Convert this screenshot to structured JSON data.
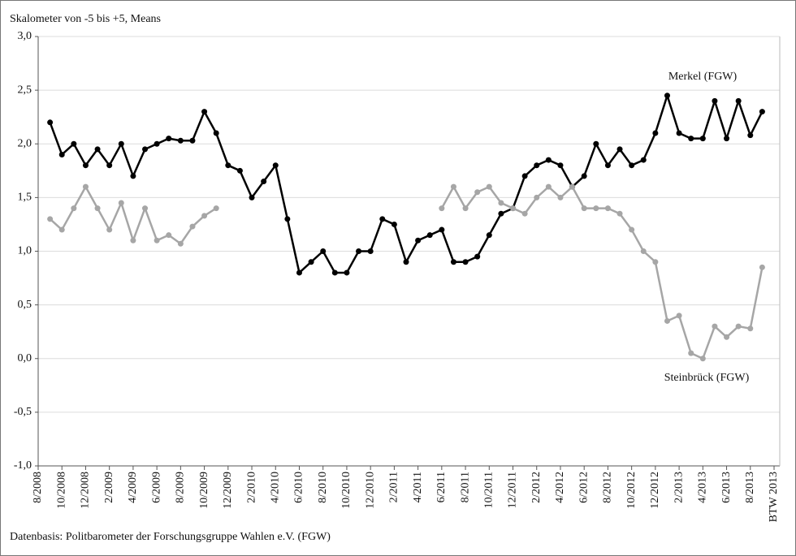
{
  "chart_data": {
    "type": "line",
    "title": "Skalometer von -5 bis +5, Means",
    "footnote": "Datenbasis: Politbarometer der Forschungsgruppe Wahlen e.V. (FGW)",
    "categories": [
      "8/2008",
      null,
      "10/2008",
      null,
      "12/2008",
      null,
      "2/2009",
      null,
      "4/2009",
      null,
      "6/2009",
      null,
      "8/2009",
      null,
      "10/2009",
      null,
      "12/2009",
      null,
      "2/2010",
      null,
      "4/2010",
      null,
      "6/2010",
      null,
      "8/2010",
      null,
      "10/2010",
      null,
      "12/2010",
      null,
      "2/2011",
      null,
      "4/2011",
      null,
      "6/2011",
      null,
      "8/2011",
      null,
      "10/2011",
      null,
      "12/2011",
      null,
      "2/2012",
      null,
      "4/2012",
      null,
      "6/2012",
      null,
      "8/2012",
      null,
      "10/2012",
      null,
      "12/2012",
      null,
      "2/2013",
      null,
      "4/2013",
      null,
      "6/2013",
      null,
      "8/2013",
      null,
      "BTW 2013"
    ],
    "series": [
      {
        "name": "Merkel (FGW)",
        "color": "#000000",
        "values": [
          null,
          2.2,
          1.9,
          2.0,
          1.8,
          1.95,
          1.8,
          2.0,
          1.7,
          1.95,
          2.0,
          2.05,
          2.03,
          2.03,
          2.3,
          2.1,
          1.8,
          1.75,
          1.5,
          1.65,
          1.8,
          1.3,
          0.8,
          0.9,
          1.0,
          0.8,
          0.8,
          1.0,
          1.0,
          1.3,
          1.25,
          0.9,
          1.1,
          1.15,
          1.2,
          0.9,
          0.9,
          0.95,
          1.15,
          1.35,
          1.4,
          1.7,
          1.8,
          1.85,
          1.8,
          1.6,
          1.7,
          2.0,
          1.8,
          1.95,
          1.8,
          1.85,
          2.1,
          2.45,
          2.1,
          2.05,
          2.05,
          2.4,
          2.05,
          2.4,
          2.08,
          2.3,
          null
        ]
      },
      {
        "name": "Steinbrück (FGW)",
        "color": "#a6a6a6",
        "values": [
          null,
          1.3,
          1.2,
          1.4,
          1.6,
          1.4,
          1.2,
          1.45,
          1.1,
          1.4,
          1.1,
          1.15,
          1.07,
          1.23,
          1.33,
          1.4,
          null,
          null,
          null,
          null,
          null,
          null,
          null,
          null,
          null,
          null,
          null,
          null,
          null,
          null,
          null,
          null,
          null,
          null,
          1.4,
          1.6,
          1.4,
          1.55,
          1.6,
          1.45,
          1.4,
          1.35,
          1.5,
          1.6,
          1.5,
          1.6,
          1.4,
          1.4,
          1.4,
          1.35,
          1.2,
          1.0,
          0.9,
          0.35,
          0.4,
          0.05,
          0.0,
          0.3,
          0.2,
          0.3,
          0.28,
          0.85,
          null
        ]
      }
    ],
    "ylim": [
      -1,
      3
    ],
    "yticks": [
      {
        "value": -1,
        "label": "-1,0"
      },
      {
        "value": -0.5,
        "label": "-0,5"
      },
      {
        "value": 0,
        "label": "0,0"
      },
      {
        "value": 0.5,
        "label": "0,5"
      },
      {
        "value": 1,
        "label": "1,0"
      },
      {
        "value": 1.5,
        "label": "1,5"
      },
      {
        "value": 2,
        "label": "2,0"
      },
      {
        "value": 2.5,
        "label": "2,5"
      },
      {
        "value": 3,
        "label": "3,0"
      }
    ],
    "grid": true
  }
}
